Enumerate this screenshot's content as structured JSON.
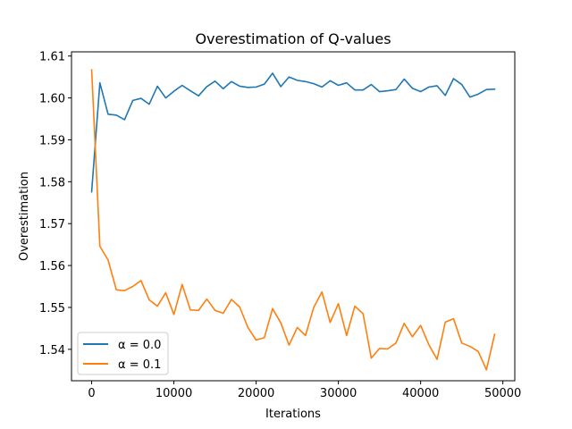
{
  "chart_data": {
    "type": "line",
    "title": "Overestimation of Q-values",
    "xlabel": "Iterations",
    "ylabel": "Overestimation",
    "xlim": [
      -2450,
      51450
    ],
    "ylim": [
      1.5325,
      1.611
    ],
    "xticks": [
      0,
      10000,
      20000,
      30000,
      40000,
      50000
    ],
    "xtick_labels": [
      "0",
      "10000",
      "20000",
      "30000",
      "40000",
      "50000"
    ],
    "yticks": [
      1.54,
      1.55,
      1.56,
      1.57,
      1.58,
      1.59,
      1.6,
      1.61
    ],
    "ytick_labels": [
      "1.54",
      "1.55",
      "1.56",
      "1.57",
      "1.58",
      "1.59",
      "1.60",
      "1.61"
    ],
    "grid": false,
    "legend_position": "lower left",
    "x": [
      0,
      1000,
      2000,
      3000,
      4000,
      5000,
      6000,
      7000,
      8000,
      9000,
      10000,
      11000,
      12000,
      13000,
      14000,
      15000,
      16000,
      17000,
      18000,
      19000,
      20000,
      21000,
      22000,
      23000,
      24000,
      25000,
      26000,
      27000,
      28000,
      29000,
      30000,
      31000,
      32000,
      33000,
      34000,
      35000,
      36000,
      37000,
      38000,
      39000,
      40000,
      41000,
      42000,
      43000,
      44000,
      45000,
      46000,
      47000,
      48000,
      49000
    ],
    "series": [
      {
        "name": "α = 0.0",
        "color": "#1f77b4",
        "values": [
          1.5776,
          1.6036,
          1.5961,
          1.5959,
          1.5948,
          1.5994,
          1.5999,
          1.5985,
          1.6028,
          1.6,
          1.6016,
          1.603,
          1.6017,
          1.6005,
          1.6027,
          1.604,
          1.6022,
          1.6039,
          1.6028,
          1.6025,
          1.6026,
          1.6033,
          1.6059,
          1.6027,
          1.605,
          1.6042,
          1.6039,
          1.6034,
          1.6026,
          1.6041,
          1.603,
          1.6036,
          1.6019,
          1.6019,
          1.6032,
          1.6015,
          1.6017,
          1.602,
          1.6045,
          1.6023,
          1.6015,
          1.6026,
          1.6029,
          1.6006,
          1.6046,
          1.6032,
          1.6002,
          1.6009,
          1.602,
          1.6021
        ]
      },
      {
        "name": "α = 0.1",
        "color": "#ff7f0e",
        "values": [
          1.6067,
          1.5646,
          1.5613,
          1.5542,
          1.554,
          1.555,
          1.5564,
          1.5518,
          1.5503,
          1.5535,
          1.5483,
          1.5555,
          1.5494,
          1.5493,
          1.552,
          1.5493,
          1.5486,
          1.5519,
          1.5501,
          1.5452,
          1.5422,
          1.5428,
          1.5497,
          1.5463,
          1.541,
          1.5452,
          1.5433,
          1.55,
          1.5537,
          1.5464,
          1.5509,
          1.5433,
          1.5503,
          1.5485,
          1.5379,
          1.5402,
          1.5401,
          1.5415,
          1.5462,
          1.543,
          1.5457,
          1.5411,
          1.5376,
          1.5465,
          1.5473,
          1.5415,
          1.5407,
          1.5395,
          1.5351,
          1.5436
        ]
      }
    ]
  }
}
